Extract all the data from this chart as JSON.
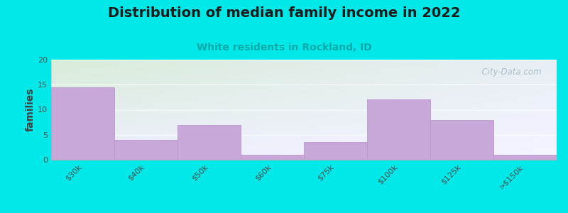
{
  "categories": [
    "$30k",
    "$40k",
    "$50k",
    "$60k",
    "$75k",
    "$100k",
    "$125k",
    ">$150k"
  ],
  "values": [
    14.5,
    4.0,
    7.0,
    1.0,
    3.5,
    12.0,
    8.0,
    1.0
  ],
  "bar_color": "#c8a8d8",
  "bar_edge_color": "#b898cc",
  "title": "Distribution of median family income in 2022",
  "subtitle": "White residents in Rockland, ID",
  "ylabel": "families",
  "ylim": [
    0,
    20
  ],
  "yticks": [
    0,
    5,
    10,
    15,
    20
  ],
  "background_color": "#00e8e8",
  "plot_bg_topleft": "#d8edd8",
  "plot_bg_topright": "#e8eef5",
  "plot_bg_bottom": "#eeeeff",
  "title_fontsize": 14,
  "subtitle_fontsize": 10,
  "subtitle_color": "#00aaaa",
  "watermark_text": "  City-Data.com",
  "watermark_color": "#a0b8c0",
  "ylabel_fontsize": 10,
  "tick_fontsize": 8
}
